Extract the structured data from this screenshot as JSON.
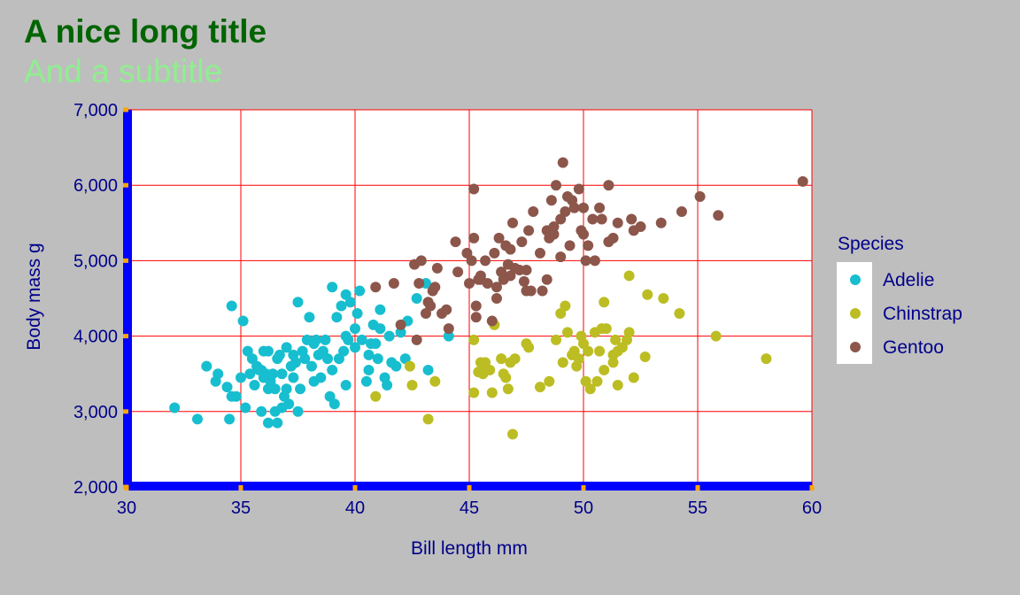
{
  "colors": {
    "page_background": "#bebebe",
    "plot_background": "#ffffff",
    "title": "#006400",
    "subtitle": "#90ee90",
    "axis_text": "#00008b",
    "gridlines": "#ff0000",
    "axis_lines": "#0000ff",
    "ticks": "#ffa500",
    "legend_background": "#ffffff"
  },
  "chart_data": {
    "type": "scatter",
    "title": "A nice long title",
    "subtitle": "And a subtitle",
    "xlabel": "Bill length mm",
    "ylabel": "Body mass g",
    "xlim": [
      30,
      60
    ],
    "ylim": [
      2000,
      7000
    ],
    "x_ticks": [
      30,
      35,
      40,
      45,
      50,
      55,
      60
    ],
    "y_ticks": [
      2000,
      3000,
      4000,
      5000,
      6000,
      7000
    ],
    "x_tick_labels": [
      "30",
      "35",
      "40",
      "45",
      "50",
      "55",
      "60"
    ],
    "y_tick_labels": [
      "2,000",
      "3,000",
      "4,000",
      "5,000",
      "6,000",
      "7,000"
    ],
    "grid": true,
    "legend": {
      "title": "Species",
      "position": "right"
    },
    "series": [
      {
        "name": "Adelie",
        "color": "#17becf",
        "points": [
          [
            32.1,
            3050
          ],
          [
            33.1,
            2900
          ],
          [
            33.5,
            3600
          ],
          [
            33.9,
            3400
          ],
          [
            34.0,
            3500
          ],
          [
            34.4,
            3325
          ],
          [
            34.5,
            2900
          ],
          [
            34.6,
            3200
          ],
          [
            34.6,
            4400
          ],
          [
            35.0,
            3450
          ],
          [
            35.1,
            4200
          ],
          [
            35.2,
            3050
          ],
          [
            35.3,
            3800
          ],
          [
            35.5,
            3700
          ],
          [
            35.6,
            3350
          ],
          [
            35.7,
            3600
          ],
          [
            35.9,
            3550
          ],
          [
            35.9,
            3000
          ],
          [
            36.0,
            3800
          ],
          [
            36.0,
            3450
          ],
          [
            36.2,
            3300
          ],
          [
            36.2,
            3800
          ],
          [
            36.3,
            3400
          ],
          [
            36.4,
            3500
          ],
          [
            36.5,
            3300
          ],
          [
            36.6,
            3700
          ],
          [
            36.6,
            2850
          ],
          [
            36.7,
            3750
          ],
          [
            36.8,
            3500
          ],
          [
            36.9,
            3200
          ],
          [
            37.0,
            3850
          ],
          [
            37.2,
            3600
          ],
          [
            37.3,
            3450
          ],
          [
            37.5,
            3000
          ],
          [
            37.6,
            3300
          ],
          [
            37.7,
            3800
          ],
          [
            37.8,
            3700
          ],
          [
            37.9,
            3950
          ],
          [
            38.1,
            3600
          ],
          [
            38.2,
            3900
          ],
          [
            38.3,
            3950
          ],
          [
            38.6,
            3800
          ],
          [
            38.8,
            3700
          ],
          [
            39.0,
            3550
          ],
          [
            39.2,
            4250
          ],
          [
            39.5,
            3800
          ],
          [
            39.6,
            3350
          ],
          [
            39.7,
            3950
          ],
          [
            39.8,
            4450
          ],
          [
            40.1,
            4300
          ],
          [
            40.3,
            3950
          ],
          [
            40.5,
            3400
          ],
          [
            40.6,
            3550
          ],
          [
            40.8,
            4150
          ],
          [
            40.9,
            3900
          ],
          [
            41.1,
            4350
          ],
          [
            41.3,
            3450
          ],
          [
            41.5,
            4000
          ],
          [
            41.8,
            3600
          ],
          [
            42.0,
            4050
          ],
          [
            42.2,
            3700
          ],
          [
            42.7,
            4500
          ],
          [
            43.1,
            4700
          ],
          [
            37.5,
            4450
          ],
          [
            38.0,
            4250
          ],
          [
            36.1,
            3500
          ],
          [
            37.3,
            3750
          ],
          [
            38.5,
            3450
          ],
          [
            39.1,
            3100
          ],
          [
            41.0,
            3700
          ],
          [
            39.3,
            3700
          ],
          [
            40.0,
            3850
          ],
          [
            35.8,
            3550
          ],
          [
            36.8,
            3050
          ],
          [
            38.9,
            3200
          ],
          [
            39.4,
            4400
          ],
          [
            40.2,
            4600
          ],
          [
            41.1,
            4100
          ],
          [
            42.3,
            4200
          ],
          [
            44.1,
            4000
          ],
          [
            43.2,
            3550
          ],
          [
            37.4,
            3650
          ],
          [
            36.5,
            3000
          ],
          [
            38.4,
            3750
          ],
          [
            39.6,
            4000
          ],
          [
            40.7,
            3900
          ],
          [
            41.4,
            3350
          ],
          [
            35.4,
            3500
          ],
          [
            38.7,
            3950
          ],
          [
            41.6,
            3650
          ],
          [
            37.0,
            3300
          ],
          [
            37.1,
            3100
          ],
          [
            38.2,
            3400
          ],
          [
            39.6,
            4550
          ],
          [
            40.0,
            4100
          ],
          [
            39.0,
            4650
          ],
          [
            36.2,
            2850
          ],
          [
            40.6,
            3750
          ],
          [
            34.8,
            3200
          ]
        ]
      },
      {
        "name": "Chinstrap",
        "color": "#bcbd22",
        "points": [
          [
            40.9,
            3200
          ],
          [
            42.4,
            3600
          ],
          [
            42.5,
            3350
          ],
          [
            43.2,
            2900
          ],
          [
            43.5,
            3400
          ],
          [
            45.2,
            3950
          ],
          [
            45.2,
            3250
          ],
          [
            45.4,
            3525
          ],
          [
            45.5,
            3650
          ],
          [
            45.6,
            3600
          ],
          [
            45.7,
            3650
          ],
          [
            45.9,
            3550
          ],
          [
            46.0,
            3250
          ],
          [
            46.1,
            4150
          ],
          [
            46.4,
            3700
          ],
          [
            46.5,
            3500
          ],
          [
            46.6,
            3450
          ],
          [
            46.7,
            3300
          ],
          [
            46.8,
            3650
          ],
          [
            46.9,
            2700
          ],
          [
            47.0,
            3700
          ],
          [
            47.5,
            3900
          ],
          [
            47.6,
            3850
          ],
          [
            48.1,
            3325
          ],
          [
            48.5,
            3400
          ],
          [
            49.0,
            4300
          ],
          [
            49.2,
            4400
          ],
          [
            49.3,
            4050
          ],
          [
            49.6,
            3800
          ],
          [
            49.7,
            3600
          ],
          [
            50.0,
            3900
          ],
          [
            50.1,
            3400
          ],
          [
            50.2,
            3800
          ],
          [
            50.3,
            3300
          ],
          [
            50.5,
            4050
          ],
          [
            50.6,
            3400
          ],
          [
            50.7,
            3800
          ],
          [
            50.8,
            4100
          ],
          [
            50.9,
            3550
          ],
          [
            51.0,
            4100
          ],
          [
            51.3,
            3650
          ],
          [
            51.4,
            3950
          ],
          [
            51.5,
            3800
          ],
          [
            51.7,
            3850
          ],
          [
            52.0,
            4050
          ],
          [
            52.2,
            3450
          ],
          [
            52.7,
            3725
          ],
          [
            52.8,
            4550
          ],
          [
            53.5,
            4500
          ],
          [
            54.2,
            4300
          ],
          [
            55.8,
            4000
          ],
          [
            58.0,
            3700
          ],
          [
            48.8,
            3950
          ],
          [
            49.5,
            3750
          ],
          [
            51.9,
            3950
          ],
          [
            52.0,
            4800
          ],
          [
            51.3,
            3750
          ],
          [
            49.8,
            3700
          ],
          [
            50.9,
            4450
          ],
          [
            45.6,
            3500
          ],
          [
            49.1,
            3650
          ],
          [
            51.5,
            3350
          ],
          [
            49.9,
            4000
          ]
        ]
      },
      {
        "name": "Gentoo",
        "color": "#8c564b",
        "points": [
          [
            40.9,
            4650
          ],
          [
            41.7,
            4700
          ],
          [
            42.0,
            4150
          ],
          [
            42.6,
            4950
          ],
          [
            42.7,
            3950
          ],
          [
            42.8,
            4700
          ],
          [
            42.9,
            5000
          ],
          [
            43.2,
            4450
          ],
          [
            43.3,
            4400
          ],
          [
            43.4,
            4600
          ],
          [
            43.5,
            4650
          ],
          [
            43.6,
            4900
          ],
          [
            43.8,
            4300
          ],
          [
            44.0,
            4350
          ],
          [
            44.4,
            5250
          ],
          [
            44.5,
            4850
          ],
          [
            44.9,
            5100
          ],
          [
            45.0,
            4700
          ],
          [
            45.1,
            5000
          ],
          [
            45.2,
            5300
          ],
          [
            45.3,
            4400
          ],
          [
            45.4,
            4750
          ],
          [
            45.5,
            4750
          ],
          [
            45.7,
            5000
          ],
          [
            45.8,
            4700
          ],
          [
            46.1,
            5100
          ],
          [
            46.2,
            4650
          ],
          [
            46.3,
            5300
          ],
          [
            46.4,
            4850
          ],
          [
            46.5,
            4750
          ],
          [
            46.6,
            5200
          ],
          [
            46.7,
            4950
          ],
          [
            46.8,
            5150
          ],
          [
            46.9,
            5500
          ],
          [
            47.2,
            4875
          ],
          [
            47.3,
            5250
          ],
          [
            47.4,
            4725
          ],
          [
            47.5,
            4875
          ],
          [
            47.6,
            5400
          ],
          [
            47.7,
            4600
          ],
          [
            47.8,
            5650
          ],
          [
            48.1,
            5100
          ],
          [
            48.2,
            4600
          ],
          [
            48.4,
            5400
          ],
          [
            48.5,
            5300
          ],
          [
            48.6,
            5800
          ],
          [
            48.7,
            5350
          ],
          [
            48.8,
            6000
          ],
          [
            49.0,
            5550
          ],
          [
            49.1,
            6300
          ],
          [
            49.2,
            5650
          ],
          [
            49.3,
            5850
          ],
          [
            49.5,
            5800
          ],
          [
            49.6,
            5700
          ],
          [
            49.8,
            5950
          ],
          [
            49.9,
            5400
          ],
          [
            50.0,
            5700
          ],
          [
            50.1,
            5000
          ],
          [
            50.2,
            5200
          ],
          [
            50.4,
            5550
          ],
          [
            50.5,
            5000
          ],
          [
            50.7,
            5700
          ],
          [
            50.8,
            5550
          ],
          [
            51.1,
            5250
          ],
          [
            51.3,
            5300
          ],
          [
            51.5,
            5500
          ],
          [
            52.1,
            5550
          ],
          [
            52.2,
            5400
          ],
          [
            52.5,
            5450
          ],
          [
            53.4,
            5500
          ],
          [
            54.3,
            5650
          ],
          [
            55.1,
            5850
          ],
          [
            55.9,
            5600
          ],
          [
            59.6,
            6050
          ],
          [
            45.2,
            5950
          ],
          [
            51.1,
            6000
          ],
          [
            49.4,
            5200
          ],
          [
            48.7,
            5450
          ],
          [
            46.0,
            4200
          ],
          [
            45.3,
            4250
          ],
          [
            44.1,
            4100
          ],
          [
            43.1,
            4300
          ],
          [
            47.0,
            4900
          ],
          [
            46.2,
            4500
          ],
          [
            45.5,
            4800
          ],
          [
            48.4,
            4750
          ],
          [
            50.0,
            5350
          ],
          [
            49.0,
            5050
          ],
          [
            47.5,
            4600
          ],
          [
            46.8,
            4800
          ]
        ]
      }
    ]
  }
}
